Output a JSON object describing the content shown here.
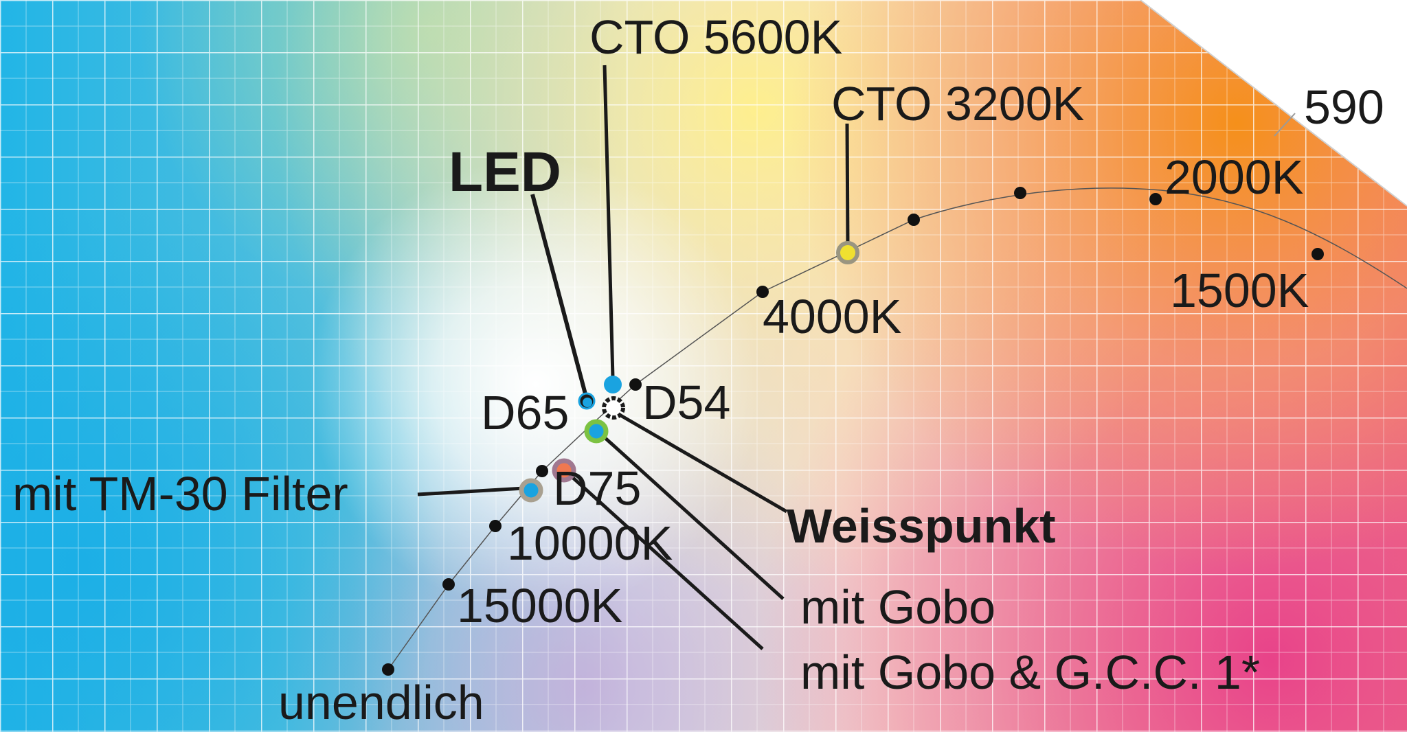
{
  "labels": {
    "cto_5600": "CTO 5600K",
    "cto_3200": "CTO 3200K",
    "led": "LED",
    "edge_590": "590",
    "k2000": "2000K",
    "k1500": "1500K",
    "k4000": "4000K",
    "d54": "D54",
    "d65": "D65",
    "d75": "D75",
    "tm30": "mit TM-30 Filter",
    "k10000": "10000K",
    "k15000": "15000K",
    "weisspunkt": "Weisspunkt",
    "gobo": "mit Gobo",
    "gobo_gcc": "mit Gobo & G.C.C. 1*",
    "infinite": "unendlich"
  },
  "colors": {
    "text": "#1a1a1a",
    "grid": "#ffffff",
    "led_marker": "#1aa3e0",
    "cto3200_marker": "#f0e030",
    "cto3200_ring": "#9a9580",
    "gobo_marker": "#1aa3e0",
    "gobo_ring": "#7cc242",
    "gcc_marker": "#f07850",
    "gcc_ring": "#a07890",
    "tm30_marker": "#1aa3e0",
    "tm30_ring": "#a8a090"
  }
}
